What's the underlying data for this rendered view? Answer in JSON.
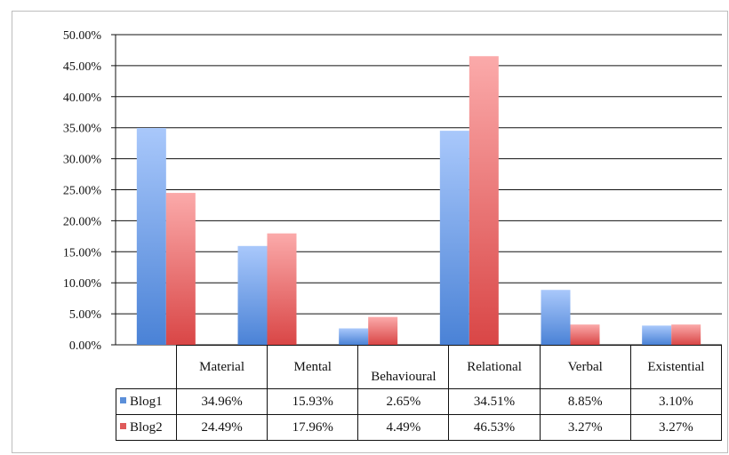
{
  "chart_data": {
    "type": "bar",
    "categories": [
      "Material",
      "Mental",
      "Behavioural",
      "Relational",
      "Verbal",
      "Existential"
    ],
    "series": [
      {
        "name": "Blog1",
        "values": [
          34.96,
          15.93,
          2.65,
          34.51,
          8.85,
          3.1
        ],
        "labels": [
          "34.96%",
          "15.93%",
          "2.65%",
          "34.51%",
          "8.85%",
          "3.10%"
        ],
        "color": "#5b8fd9"
      },
      {
        "name": "Blog2",
        "values": [
          24.49,
          17.96,
          4.49,
          46.53,
          3.27,
          3.27
        ],
        "labels": [
          "24.49%",
          "17.96%",
          "4.49%",
          "46.53%",
          "3.27%",
          "3.27%"
        ],
        "color": "#df5a5a"
      }
    ],
    "yticks": [
      "0.00%",
      "5.00%",
      "10.00%",
      "15.00%",
      "20.00%",
      "25.00%",
      "30.00%",
      "35.00%",
      "40.00%",
      "45.00%",
      "50.00%"
    ],
    "ylim": [
      0,
      50
    ],
    "grid": true,
    "legend": "data-table"
  }
}
